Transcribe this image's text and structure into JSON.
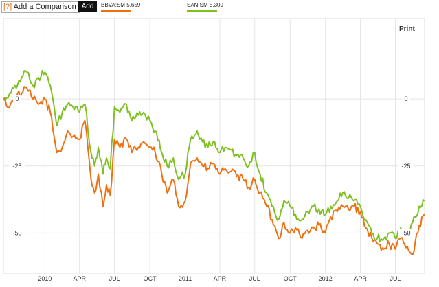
{
  "toolbar": {
    "help": "[?]",
    "compare_label": "Add a Comparison",
    "add_label": "Add"
  },
  "legend": [
    {
      "name": "BBVA:SM",
      "value": "5.659",
      "color": "#f07010"
    },
    {
      "name": "SAN:SM",
      "value": "5.309",
      "color": "#7ec020"
    }
  ],
  "print_label": "Print",
  "chart_data": {
    "type": "line",
    "title": "",
    "xlabel": "",
    "ylabel": "",
    "ylim": [
      -65,
      30
    ],
    "y_ticks": [
      0,
      -25,
      -50
    ],
    "y_tick_labels": [
      "0",
      "-25",
      "-50"
    ],
    "x_ticks": [
      "2010",
      "APR",
      "JUL",
      "OCT",
      "2011",
      "APR",
      "JUL",
      "OCT",
      "2012",
      "APR",
      "JUL"
    ],
    "x_tick_dates": [
      "2010-01-01",
      "2010-04-01",
      "2010-07-01",
      "2010-10-01",
      "2011-01-01",
      "2011-04-01",
      "2011-07-01",
      "2011-10-01",
      "2012-01-01",
      "2012-04-01",
      "2012-07-01"
    ],
    "x_range": [
      "2009-09-15",
      "2012-09-15"
    ],
    "grid": true,
    "series": [
      {
        "name": "BBVA:SM",
        "color": "#f07010",
        "x": [
          "2009-09-15",
          "2009-10-01",
          "2009-10-15",
          "2009-11-01",
          "2009-11-15",
          "2009-12-01",
          "2009-12-15",
          "2010-01-01",
          "2010-01-15",
          "2010-02-01",
          "2010-02-15",
          "2010-03-01",
          "2010-03-15",
          "2010-04-01",
          "2010-04-15",
          "2010-05-01",
          "2010-05-10",
          "2010-05-20",
          "2010-06-01",
          "2010-06-10",
          "2010-06-20",
          "2010-07-01",
          "2010-07-15",
          "2010-08-01",
          "2010-08-15",
          "2010-09-01",
          "2010-09-15",
          "2010-10-01",
          "2010-10-15",
          "2010-11-01",
          "2010-11-15",
          "2010-12-01",
          "2010-12-15",
          "2011-01-01",
          "2011-01-15",
          "2011-02-01",
          "2011-02-15",
          "2011-03-01",
          "2011-03-15",
          "2011-04-01",
          "2011-04-15",
          "2011-05-01",
          "2011-05-15",
          "2011-06-01",
          "2011-06-15",
          "2011-07-01",
          "2011-07-15",
          "2011-08-01",
          "2011-08-15",
          "2011-09-01",
          "2011-09-15",
          "2011-10-01",
          "2011-10-15",
          "2011-11-01",
          "2011-11-15",
          "2011-12-01",
          "2011-12-15",
          "2012-01-01",
          "2012-01-15",
          "2012-02-01",
          "2012-02-15",
          "2012-03-01",
          "2012-03-15",
          "2012-04-01",
          "2012-04-15",
          "2012-05-01",
          "2012-05-15",
          "2012-06-01",
          "2012-06-15",
          "2012-07-01",
          "2012-07-15",
          "2012-08-01",
          "2012-08-15",
          "2012-09-01",
          "2012-09-15"
        ],
        "values": [
          0,
          -3,
          1,
          2,
          4,
          0,
          -2,
          0,
          -5,
          -20,
          -18,
          -12,
          -14,
          -15,
          -8,
          -30,
          -35,
          -28,
          -40,
          -32,
          -36,
          -15,
          -18,
          -15,
          -20,
          -18,
          -16,
          -18,
          -20,
          -28,
          -35,
          -30,
          -40,
          -38,
          -24,
          -22,
          -25,
          -26,
          -24,
          -28,
          -26,
          -27,
          -29,
          -30,
          -33,
          -30,
          -35,
          -40,
          -45,
          -52,
          -46,
          -50,
          -48,
          -52,
          -49,
          -48,
          -47,
          -50,
          -44,
          -42,
          -40,
          -41,
          -40,
          -42,
          -48,
          -52,
          -54,
          -56,
          -54,
          -56,
          -52,
          -55,
          -58,
          -47,
          -43
        ]
      },
      {
        "name": "SAN:SM",
        "color": "#7ec020",
        "x": [
          "2009-09-15",
          "2009-10-01",
          "2009-10-15",
          "2009-11-01",
          "2009-11-15",
          "2009-12-01",
          "2009-12-15",
          "2010-01-01",
          "2010-01-15",
          "2010-02-01",
          "2010-02-15",
          "2010-03-01",
          "2010-03-15",
          "2010-04-01",
          "2010-04-15",
          "2010-05-01",
          "2010-05-10",
          "2010-05-20",
          "2010-06-01",
          "2010-06-10",
          "2010-06-20",
          "2010-07-01",
          "2010-07-15",
          "2010-08-01",
          "2010-08-15",
          "2010-09-01",
          "2010-09-15",
          "2010-10-01",
          "2010-10-15",
          "2010-11-01",
          "2010-11-15",
          "2010-12-01",
          "2010-12-15",
          "2011-01-01",
          "2011-01-15",
          "2011-02-01",
          "2011-02-15",
          "2011-03-01",
          "2011-03-15",
          "2011-04-01",
          "2011-04-15",
          "2011-05-01",
          "2011-05-15",
          "2011-06-01",
          "2011-06-15",
          "2011-07-01",
          "2011-07-15",
          "2011-08-01",
          "2011-08-15",
          "2011-09-01",
          "2011-09-15",
          "2011-10-01",
          "2011-10-15",
          "2011-11-01",
          "2011-11-15",
          "2011-12-01",
          "2011-12-15",
          "2012-01-01",
          "2012-01-15",
          "2012-02-01",
          "2012-02-15",
          "2012-03-01",
          "2012-03-15",
          "2012-04-01",
          "2012-04-15",
          "2012-05-01",
          "2012-05-15",
          "2012-06-01",
          "2012-06-15",
          "2012-07-01",
          "2012-07-15",
          "2012-08-01",
          "2012-08-15",
          "2012-09-01",
          "2012-09-15"
        ],
        "values": [
          0,
          2,
          5,
          8,
          10,
          5,
          8,
          10,
          5,
          -10,
          -5,
          -2,
          -3,
          -5,
          -2,
          -20,
          -25,
          -18,
          -28,
          -22,
          -26,
          -3,
          -5,
          -2,
          -8,
          -6,
          -5,
          -8,
          -12,
          -20,
          -25,
          -22,
          -30,
          -28,
          -15,
          -12,
          -16,
          -18,
          -16,
          -20,
          -18,
          -19,
          -21,
          -22,
          -25,
          -20,
          -28,
          -35,
          -40,
          -45,
          -38,
          -40,
          -43,
          -45,
          -42,
          -40,
          -41,
          -43,
          -40,
          -38,
          -35,
          -37,
          -38,
          -40,
          -45,
          -50,
          -52,
          -52,
          -50,
          -52,
          -48,
          -50,
          -46,
          -40,
          -38
        ]
      }
    ]
  }
}
